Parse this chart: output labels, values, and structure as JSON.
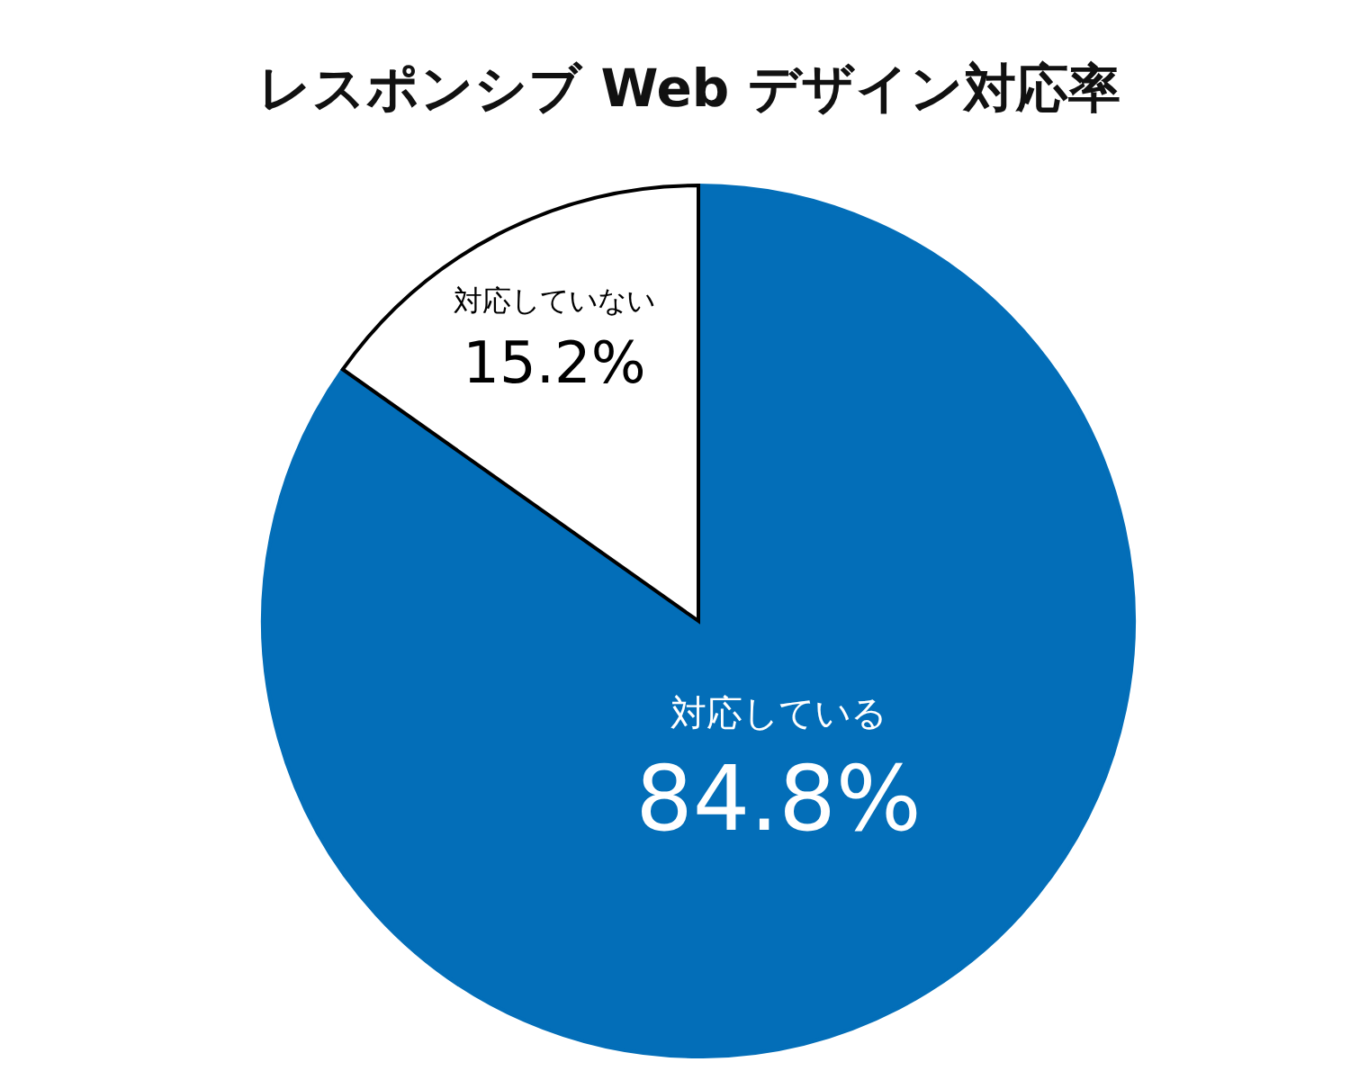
{
  "chart_data": {
    "type": "pie",
    "title": "レスポンシブ Web デザイン対応率",
    "categories": [
      "対応している",
      "対応していない"
    ],
    "values": [
      84.8,
      15.2
    ],
    "value_labels": [
      "84.8%",
      "15.2%"
    ],
    "colors": [
      "#036eb8",
      "#ffffff"
    ],
    "legend": false
  }
}
